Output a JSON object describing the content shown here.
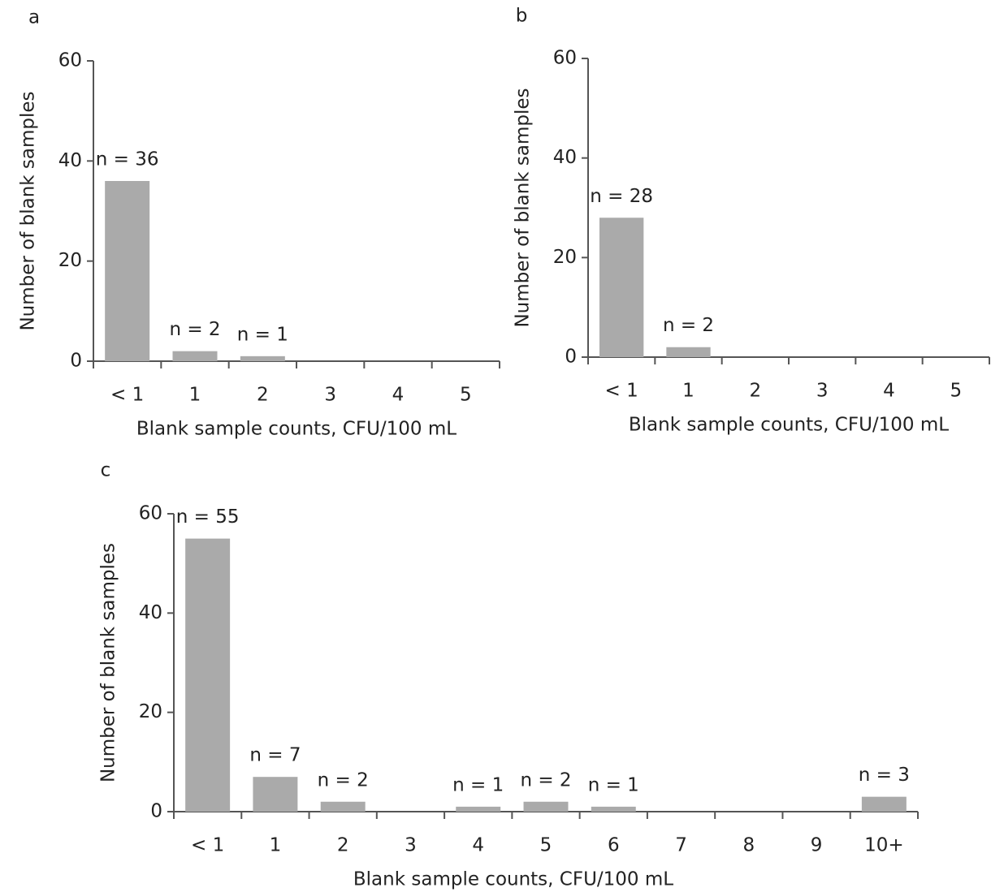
{
  "chart_data": [
    {
      "type": "bar",
      "label": "a",
      "ylabel": "Number of blank samples",
      "xlabel": "Blank sample counts, CFU/100 mL",
      "categories": [
        "< 1",
        "1",
        "2",
        "3",
        "4",
        "5"
      ],
      "values": [
        36,
        2,
        1,
        0,
        0,
        0
      ],
      "value_labels": [
        "n = 36",
        "n = 2",
        "n = 1",
        null,
        null,
        null
      ],
      "color": "#aaaaaa",
      "ylim": [
        0,
        60
      ],
      "yticks": [
        0,
        20,
        40,
        60
      ]
    },
    {
      "type": "bar",
      "label": "b",
      "ylabel": "Number of blank samples",
      "xlabel": "Blank sample counts, CFU/100 mL",
      "categories": [
        "< 1",
        "1",
        "2",
        "3",
        "4",
        "5"
      ],
      "values": [
        28,
        2,
        0,
        0,
        0,
        0
      ],
      "value_labels": [
        "n = 28",
        "n = 2",
        null,
        null,
        null,
        null
      ],
      "color": "#aaaaaa",
      "ylim": [
        0,
        60
      ],
      "yticks": [
        0,
        20,
        40,
        60
      ]
    },
    {
      "type": "bar",
      "label": "c",
      "ylabel": "Number of blank samples",
      "xlabel": "Blank sample counts, CFU/100 mL",
      "categories": [
        "< 1",
        "1",
        "2",
        "3",
        "4",
        "5",
        "6",
        "7",
        "8",
        "9",
        "10+"
      ],
      "values": [
        55,
        7,
        2,
        0,
        1,
        2,
        1,
        0,
        0,
        0,
        3
      ],
      "value_labels": [
        "n = 55",
        "n = 7",
        "n = 2",
        null,
        "n = 1",
        "n = 2",
        "n = 1",
        null,
        null,
        null,
        "n = 3"
      ],
      "color": "#aaaaaa",
      "ylim": [
        0,
        60
      ],
      "yticks": [
        0,
        20,
        40,
        60
      ]
    }
  ]
}
